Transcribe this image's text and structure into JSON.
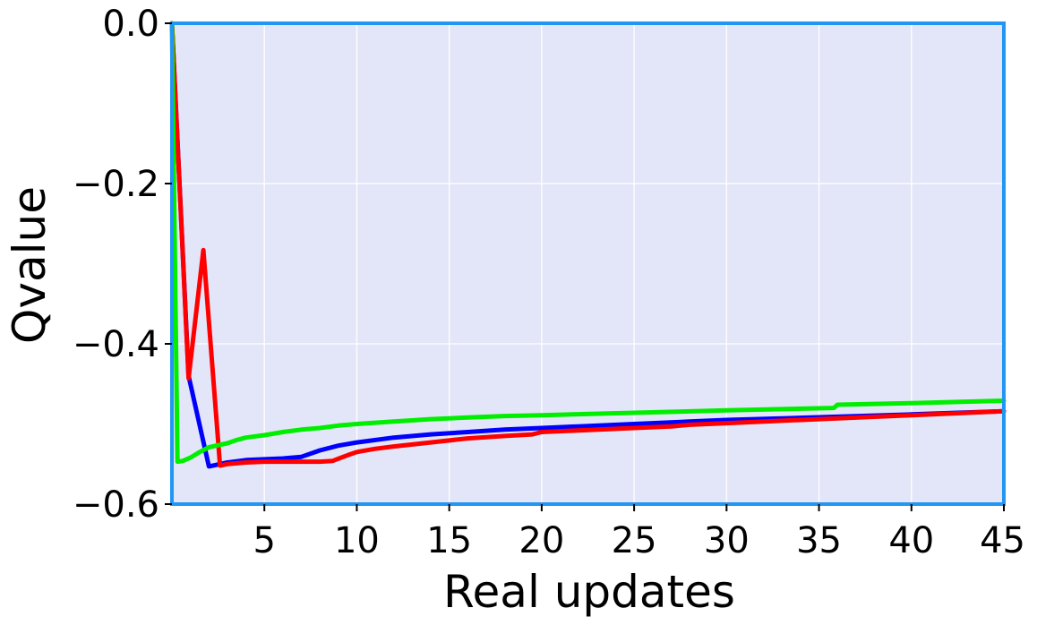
{
  "chart_data": {
    "type": "line",
    "title": "",
    "xlabel": "Real updates",
    "ylabel": "Qvalue",
    "xlim": [
      0,
      45
    ],
    "ylim": [
      -0.6,
      0.0
    ],
    "xticks": [
      5,
      10,
      15,
      20,
      25,
      30,
      35,
      40,
      45
    ],
    "xtick_labels": [
      "5",
      "10",
      "15",
      "20",
      "25",
      "30",
      "35",
      "40",
      "45"
    ],
    "yticks": [
      0.0,
      -0.2,
      -0.4,
      -0.6
    ],
    "ytick_labels": [
      "0.0",
      "−0.2",
      "−0.4",
      "−0.6"
    ],
    "grid": true,
    "legend": "none",
    "colors": {
      "plot_background": "#e3e6f8",
      "frame": "#2196f3",
      "grid": "#ffffff"
    },
    "series": [
      {
        "color": "#0000ff",
        "x": [
          0,
          0.9,
          2.0,
          3,
          4,
          5,
          6,
          7,
          8,
          9,
          10,
          12,
          14,
          16,
          18,
          20,
          22,
          25,
          28,
          30,
          33,
          36,
          40,
          45
        ],
        "y": [
          0.0,
          -0.44,
          -0.553,
          -0.548,
          -0.545,
          -0.544,
          -0.543,
          -0.541,
          -0.533,
          -0.527,
          -0.523,
          -0.517,
          -0.513,
          -0.51,
          -0.507,
          -0.505,
          -0.503,
          -0.5,
          -0.497,
          -0.495,
          -0.493,
          -0.491,
          -0.488,
          -0.484
        ]
      },
      {
        "color": "#ff0000",
        "x": [
          0,
          0.9,
          1.7,
          2.6,
          3,
          4,
          5,
          6,
          7,
          8,
          8.7,
          9.5,
          10,
          11,
          12,
          14,
          16,
          18,
          19.5,
          20,
          22,
          25,
          27,
          28,
          30,
          33,
          36,
          40,
          45
        ],
        "y": [
          0.0,
          -0.443,
          -0.283,
          -0.552,
          -0.55,
          -0.548,
          -0.547,
          -0.547,
          -0.547,
          -0.547,
          -0.546,
          -0.539,
          -0.535,
          -0.531,
          -0.528,
          -0.523,
          -0.518,
          -0.515,
          -0.513,
          -0.51,
          -0.508,
          -0.505,
          -0.503,
          -0.501,
          -0.499,
          -0.496,
          -0.493,
          -0.489,
          -0.484
        ]
      },
      {
        "color": "#00ee00",
        "x": [
          0,
          0.3,
          0.6,
          1,
          1.5,
          2,
          3,
          3.5,
          4,
          5,
          6,
          7,
          8,
          9,
          10,
          12,
          14,
          16,
          18,
          20,
          25,
          30,
          35.8,
          36,
          40,
          45
        ],
        "y": [
          0.0,
          -0.547,
          -0.546,
          -0.542,
          -0.535,
          -0.529,
          -0.524,
          -0.52,
          -0.517,
          -0.514,
          -0.51,
          -0.507,
          -0.505,
          -0.502,
          -0.5,
          -0.497,
          -0.494,
          -0.492,
          -0.49,
          -0.489,
          -0.486,
          -0.483,
          -0.48,
          -0.476,
          -0.474,
          -0.471
        ]
      }
    ]
  }
}
